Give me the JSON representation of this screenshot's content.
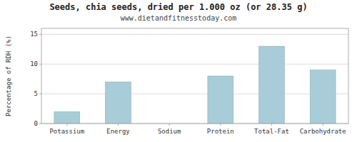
{
  "chart_data": {
    "type": "bar",
    "title": "Seeds, chia seeds, dried per 1.000 oz (or 28.35 g)",
    "subtitle": "www.dietandfitnesstoday.com",
    "categories": [
      "Potassium",
      "Energy",
      "Sodium",
      "Protein",
      "Total-Fat",
      "Carbohydrate"
    ],
    "values": [
      2.0,
      7.0,
      0.0,
      8.0,
      13.0,
      9.0
    ],
    "color": "#a8cdd8",
    "ylabel": "Percentage of RDH (%)",
    "ylim": [
      0,
      16
    ],
    "yticks": [
      0,
      5,
      10,
      15
    ],
    "grid": true
  }
}
